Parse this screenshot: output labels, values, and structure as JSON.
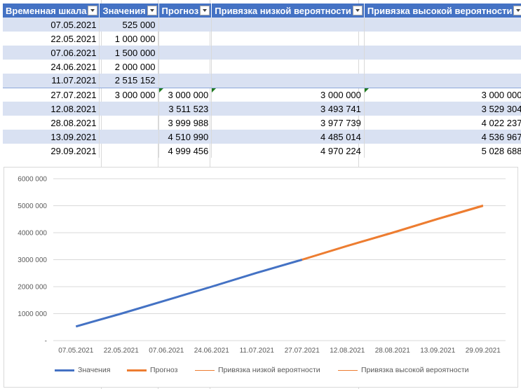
{
  "table": {
    "headers": [
      "Временная шкала",
      "Значения",
      "Прогноз",
      "Привязка низкой вероятности",
      "Привязка высокой вероятности"
    ],
    "rows": [
      {
        "date": "07.05.2021",
        "value": "525 000",
        "forecast": "",
        "low": "",
        "high": ""
      },
      {
        "date": "22.05.2021",
        "value": "1 000 000",
        "forecast": "",
        "low": "",
        "high": ""
      },
      {
        "date": "07.06.2021",
        "value": "1 500 000",
        "forecast": "",
        "low": "",
        "high": ""
      },
      {
        "date": "24.06.2021",
        "value": "2 000 000",
        "forecast": "",
        "low": "",
        "high": ""
      },
      {
        "date": "11.07.2021",
        "value": "2 515 152",
        "forecast": "",
        "low": "",
        "high": ""
      },
      {
        "date": "27.07.2021",
        "value": "3 000 000",
        "forecast": "3 000 000",
        "low": "3 000 000",
        "high": "3 000 000"
      },
      {
        "date": "12.08.2021",
        "value": "",
        "forecast": "3 511 523",
        "low": "3 493 741",
        "high": "3 529 304"
      },
      {
        "date": "28.08.2021",
        "value": "",
        "forecast": "3 999 988",
        "low": "3 977 739",
        "high": "4 022 237"
      },
      {
        "date": "13.09.2021",
        "value": "",
        "forecast": "4 510 990",
        "low": "4 485 014",
        "high": "4 536 967"
      },
      {
        "date": "29.09.2021",
        "value": "",
        "forecast": "4 999 456",
        "low": "4 970 224",
        "high": "5 028 688"
      }
    ]
  },
  "colors": {
    "header": "#4472c4",
    "band": "#d9e1f2",
    "values": "#4472c4",
    "forecast": "#ed7d31",
    "low": "#ed7d31",
    "high": "#ed7d31"
  },
  "chart_data": {
    "type": "line",
    "categories": [
      "07.05.2021",
      "22.05.2021",
      "07.06.2021",
      "24.06.2021",
      "11.07.2021",
      "27.07.2021",
      "12.08.2021",
      "28.08.2021",
      "13.09.2021",
      "29.09.2021"
    ],
    "series": [
      {
        "name": "Значения",
        "values": [
          525000,
          1000000,
          1500000,
          2000000,
          2515152,
          3000000,
          null,
          null,
          null,
          null
        ]
      },
      {
        "name": "Прогноз",
        "values": [
          null,
          null,
          null,
          null,
          null,
          3000000,
          3511523,
          3999988,
          4510990,
          4999456
        ]
      },
      {
        "name": "Привязка низкой вероятности",
        "values": [
          null,
          null,
          null,
          null,
          null,
          3000000,
          3493741,
          3977739,
          4485014,
          4970224
        ]
      },
      {
        "name": "Привязка высокой вероятности",
        "values": [
          null,
          null,
          null,
          null,
          null,
          3000000,
          3529304,
          4022237,
          4536967,
          5028688
        ]
      }
    ],
    "yticks": [
      "-",
      "1000 000",
      "2000 000",
      "3000 000",
      "4000 000",
      "5000 000",
      "6000 000"
    ],
    "ylim": [
      0,
      6000000
    ],
    "grid": true,
    "legend": "bottom",
    "title": "",
    "xlabel": "",
    "ylabel": ""
  }
}
